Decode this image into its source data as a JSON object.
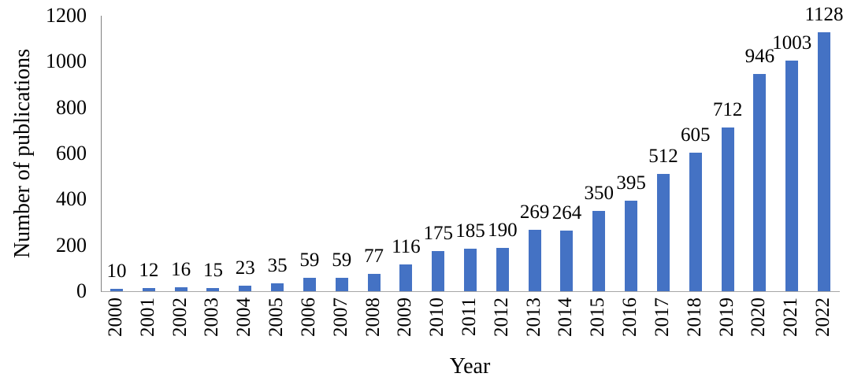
{
  "chart_data": {
    "type": "bar",
    "title": "",
    "xlabel": "Year",
    "ylabel": "Number of publications",
    "categories": [
      "2000",
      "2001",
      "2002",
      "2003",
      "2004",
      "2005",
      "2006",
      "2007",
      "2008",
      "2009",
      "2010",
      "2011",
      "2012",
      "2013",
      "2014",
      "2015",
      "2016",
      "2017",
      "2018",
      "2019",
      "2020",
      "2021",
      "2022"
    ],
    "values": [
      10,
      12,
      16,
      15,
      23,
      35,
      59,
      59,
      77,
      116,
      175,
      185,
      190,
      269,
      264,
      350,
      395,
      512,
      605,
      712,
      946,
      1003,
      1128
    ],
    "ylim": [
      0,
      1200
    ],
    "yticks": [
      0,
      200,
      400,
      600,
      800,
      1000,
      1200
    ],
    "grid": false,
    "legend": false,
    "data_labels_shown": true,
    "bar_color": "#4472C4",
    "axis_color": "#808080",
    "text_color": "#000000"
  }
}
